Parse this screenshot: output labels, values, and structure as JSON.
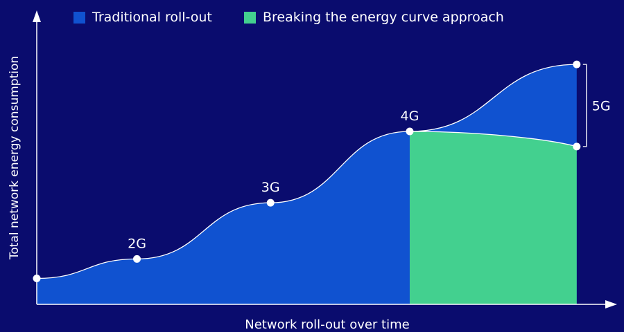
{
  "chart_data": {
    "type": "area",
    "xlabel": "Network roll-out over time",
    "ylabel": "Total network energy consumption",
    "legend": {
      "placement": "top",
      "entries": [
        {
          "name": "Traditional roll-out",
          "color": "#1052d0"
        },
        {
          "name": "Breaking the energy curve approach",
          "color": "#43d08f"
        }
      ]
    },
    "generations": [
      {
        "label": "",
        "x": 0,
        "y": 0.12
      },
      {
        "label": "2G",
        "x": 1.8,
        "y": 0.21
      },
      {
        "label": "3G",
        "x": 4.2,
        "y": 0.47
      },
      {
        "label": "4G",
        "x": 6.7,
        "y": 0.8
      },
      {
        "label": "",
        "x": 9.7,
        "y": 1.11
      }
    ],
    "breaking_curve_end": {
      "x": 9.7,
      "y": 0.73
    },
    "bracket_label": "5G",
    "xlim": [
      0,
      10.4
    ],
    "ylim": [
      0,
      1.2
    ],
    "grid": false
  }
}
